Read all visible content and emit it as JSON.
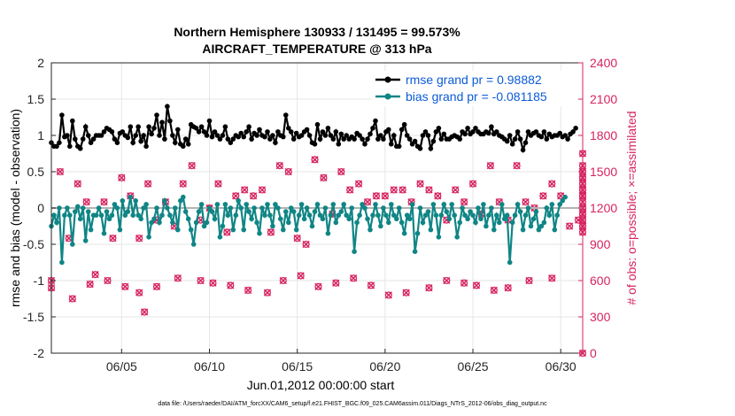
{
  "chart_data": {
    "type": "line",
    "title": "Northern Hemisphere 130933 / 131495 = 99.573%",
    "subtitle": "AIRCRAFT_TEMPERATURE @ 313 hPa",
    "xlabel": "Jun.01,2012 00:00:00 start",
    "ylabel_left": "rmse and bias (model - observation)",
    "ylabel_right": "# of obs: o=possible; ×=assimilated",
    "footer": "data file: /Users/raeder/DAI/ATM_forcXX/CAM6_setup/f.e21.FHIST_BGC.f09_025.CAM6assim.011/Diags_NTrS_2012-06/obs_diag_output.nc",
    "xlim": [
      1.0,
      31.25
    ],
    "ylim_left": [
      -2,
      2
    ],
    "ylim_right": [
      0,
      2400
    ],
    "xticks": [
      5,
      10,
      15,
      20,
      25,
      30
    ],
    "xtick_labels": [
      "06/05",
      "06/10",
      "06/15",
      "06/20",
      "06/25",
      "06/30"
    ],
    "yticks_left": [
      -2,
      -1.5,
      -1,
      -0.5,
      0,
      0.5,
      1,
      1.5,
      2
    ],
    "ytick_labels_left": [
      "-2",
      "-1.5",
      "-1",
      "-0.5",
      "0",
      "0.5",
      "1",
      "1.5",
      "2"
    ],
    "yticks_right": [
      0,
      300,
      600,
      900,
      1200,
      1500,
      1800,
      2100,
      2400
    ],
    "ytick_labels_right": [
      "0",
      "300",
      "600",
      "900",
      "1200",
      "1500",
      "1800",
      "2100",
      "2400"
    ],
    "legend_position": "top-right",
    "grid": true,
    "colors": {
      "rmse": "#000000",
      "bias": "#108585",
      "obs": "#d6245f",
      "zero_line": "#b3b3b3",
      "legend_text": "#0b5bd7"
    },
    "series": [
      {
        "name": "rmse grand pr = 0.98882",
        "values": [
          0.9,
          0.85,
          0.85,
          0.9,
          1.28,
          0.98,
          1.0,
          0.85,
          1.2,
          0.95,
          0.85,
          0.82,
          0.95,
          1.12,
          1.0,
          0.9,
          0.95,
          1.0,
          1.0,
          1.0,
          1.05,
          1.1,
          1.08,
          1.05,
          0.95,
          0.9,
          1.03,
          1.05,
          1.0,
          0.97,
          1.12,
          0.9,
          1.0,
          1.12,
          0.92,
          1.0,
          0.85,
          1.12,
          1.02,
          1.1,
          1.28,
          1.0,
          1.18,
          0.95,
          1.4,
          1.2,
          1.0,
          0.9,
          1.08,
          0.88,
          0.85,
          0.95,
          0.88,
          1.15,
          1.12,
          1.1,
          1.05,
          1.12,
          1.05,
          1.0,
          1.2,
          0.98,
          1.05,
          1.0,
          0.95,
          1.0,
          1.12,
          0.95,
          0.9,
          0.95,
          1.0,
          0.98,
          1.03,
          0.98,
          1.05,
          1.12,
          0.95,
          1.03,
          1.0,
          1.08,
          1.0,
          0.98,
          1.05,
          0.95,
          1.0,
          0.9,
          1.05,
          1.0,
          0.98,
          1.28,
          1.1,
          1.05,
          0.95,
          1.03,
          0.98,
          1.0,
          1.05,
          1.08,
          1.0,
          0.9,
          0.88,
          1.15,
          0.95,
          1.05,
          1.0,
          1.1,
          1.0,
          0.95,
          1.05,
          0.88,
          1.02,
          0.95,
          1.0,
          0.95,
          0.98,
          0.95,
          1.03,
          1.0,
          0.95,
          0.88,
          0.95,
          1.02,
          1.1,
          1.2,
          0.95,
          1.0,
          0.95,
          1.05,
          1.08,
          0.88,
          1.0,
          0.85,
          0.85,
          1.08,
          1.15,
          1.0,
          0.95,
          0.88,
          0.92,
          0.85,
          0.82,
          1.0,
          1.05,
          1.0,
          0.82,
          0.92,
          1.05,
          1.1,
          0.95,
          1.02,
          0.95,
          0.95,
          0.98,
          1.0,
          0.98,
          0.95,
          1.05,
          1.02,
          1.1,
          1.02,
          1.05,
          1.1,
          1.05,
          1.02,
          1.02,
          1.05,
          1.03,
          1.12,
          1.02,
          1.05,
          1.0,
          0.98,
          0.95,
          0.92,
          1.0,
          0.88,
          0.95,
          1.05,
          0.95,
          0.8,
          0.9,
          1.05,
          1.0,
          1.03,
          1.05,
          1.0,
          0.98,
          1.05,
          0.95,
          1.02,
          0.98,
          1.0,
          1.0,
          1.03,
          0.98,
          1.0,
          0.95,
          1.02,
          1.05,
          1.1
        ]
      },
      {
        "name": "bias grand pr = -0.081185",
        "values": [
          -0.25,
          -0.1,
          -0.2,
          0.0,
          -0.75,
          -0.1,
          0.0,
          -0.1,
          -0.5,
          -0.05,
          0.02,
          -0.15,
          0.0,
          -0.45,
          -0.05,
          -0.3,
          -0.1,
          -0.1,
          0.0,
          -0.1,
          -0.35,
          -0.05,
          -0.15,
          -0.1,
          0.05,
          0.0,
          -0.3,
          0.1,
          -0.1,
          -0.05,
          0.15,
          -0.1,
          0.1,
          -0.1,
          -0.15,
          0.0,
          0.05,
          -0.4,
          -0.2,
          -0.15,
          0.0,
          -0.2,
          -0.1,
          0.1,
          0.0,
          -0.1,
          -0.2,
          0.0,
          -0.3,
          0.1,
          0.15,
          -0.05,
          -0.15,
          -0.3,
          -0.5,
          -0.2,
          -0.05,
          0.05,
          -0.25,
          -0.2,
          0.0,
          -0.05,
          -0.15,
          0.05,
          -0.4,
          -0.25,
          0.05,
          -0.1,
          0.0,
          -0.3,
          -0.1,
          0.1,
          0.0,
          -0.3,
          0.05,
          -0.05,
          -0.15,
          0.0,
          -0.2,
          -0.35,
          0.0,
          -0.1,
          0.05,
          -0.1,
          -0.25,
          0.05,
          0.0,
          -0.15,
          -0.3,
          -0.05,
          -0.2,
          0.0,
          -0.05,
          -0.3,
          -0.1,
          0.05,
          -0.15,
          0.0,
          -0.1,
          -0.25,
          -0.05,
          0.05,
          -0.1,
          -0.15,
          0.0,
          -0.35,
          -0.1,
          0.05,
          -0.2,
          -0.1,
          -0.05,
          0.05,
          -0.1,
          -0.15,
          0.0,
          -0.6,
          -0.2,
          -0.1,
          0.05,
          0.0,
          -0.15,
          -0.3,
          -0.1,
          0.05,
          -0.1,
          -0.25,
          0.0,
          -0.1,
          -0.2,
          0.05,
          -0.1,
          -0.15,
          0.0,
          -0.2,
          -0.35,
          -0.1,
          -0.15,
          0.05,
          -0.6,
          -0.35,
          0.0,
          -0.2,
          -0.1,
          -0.05,
          -0.3,
          0.05,
          -0.1,
          -0.4,
          -0.1,
          0.05,
          -0.05,
          -0.15,
          0.05,
          -0.1,
          -0.4,
          -0.2,
          0.0,
          -0.1,
          -0.15,
          -0.05,
          -0.1,
          -0.2,
          0.0,
          -0.15,
          0.05,
          -0.25,
          -0.1,
          0.0,
          -0.3,
          -0.1,
          -0.2,
          0.05,
          -0.15,
          -0.1,
          -0.75,
          -0.2,
          -0.1,
          0.05,
          -0.05,
          -0.3,
          -0.1,
          0.0,
          -0.25,
          -0.15,
          -0.05,
          -0.3,
          -0.25,
          -0.2,
          0.0,
          -0.1,
          0.05,
          -0.3,
          -0.1,
          0.05,
          0.1,
          0.15
        ]
      }
    ],
    "obs_counts": [
      600,
      1350,
      1500,
      450,
      950,
      900,
      1400,
      600,
      1250,
      750,
      650,
      1300,
      1250,
      1450,
      950,
      350,
      1450,
      950,
      1300,
      1550,
      950,
      1050,
      1400,
      1450,
      1100,
      1350,
      1250,
      1300,
      1050,
      950,
      1400,
      1200,
      1550,
      1400,
      1100,
      1450,
      1200,
      1500,
      1400,
      1350,
      1000,
      1050,
      1300,
      1450,
      1350,
      1450,
      1300,
      1100,
      1350,
      1350,
      1000,
      1400,
      1550,
      1350,
      1500,
      1100,
      950,
      1150,
      900,
      1300,
      1600,
      1050,
      1450,
      1400,
      1150,
      1350,
      1500,
      1200,
      1350,
      1150,
      1400,
      1350,
      1250,
      1200,
      1300,
      1500,
      1300,
      1050,
      1350,
      1500,
      1350,
      1100,
      1250,
      1550,
      1400,
      1350,
      1350,
      1000,
      1300,
      1400,
      1100,
      1450,
      1350,
      1000,
      1250,
      1150,
      1400,
      1550,
      1150,
      1000,
      1550,
      1600,
      1250,
      1300,
      1100,
      1250,
      1550,
      1400,
      1250,
      1350,
      1200,
      1000,
      1300,
      1200,
      1400,
      1150,
      1300,
      1300,
      1050,
      1400,
      1100,
      1250,
      1350,
      1000,
      1200,
      1350,
      1500,
      1350,
      1150,
      1150,
      1050,
      1000,
      1650,
      1350,
      1200,
      1100,
      1450,
      1100,
      1400,
      1200,
      1500,
      1250,
      1350,
      1050,
      1200,
      1000,
      1300,
      1150,
      1450,
      1000,
      1200,
      1550,
      1050,
      1250,
      1400,
      1200,
      1200,
      1100,
      1450,
      1150,
      1300,
      1450,
      1200,
      1300,
      1100,
      1200,
      1350,
      1100,
      1200,
      1100,
      1000,
      1250,
      1550,
      1150,
      1200,
      1350,
      1150,
      1450,
      1100,
      1150,
      1200,
      1300,
      1300,
      1250,
      1150,
      1350,
      1050,
      1200,
      1250,
      1200,
      1300,
      1100,
      1200,
      1150,
      1300,
      1350,
      1200,
      1200,
      1050,
      1250,
      1100,
      1250,
      1350,
      1350,
      1200,
      0
    ],
    "obs_low_counts": [
      540,
      450,
      570,
      600,
      550,
      500,
      340,
      550,
      620,
      600,
      580,
      560,
      520,
      500,
      600,
      640,
      550,
      580,
      620,
      560,
      480,
      500,
      540,
      600,
      580,
      560,
      520,
      540,
      600,
      620
    ],
    "obs_low_days": [
      1.0,
      2.2,
      3.2,
      4.2,
      5.2,
      6.0,
      6.3,
      7.0,
      8.2,
      9.5,
      10.2,
      11.2,
      12.2,
      13.3,
      14.2,
      15.2,
      16.2,
      17.2,
      18.2,
      19.2,
      20.2,
      21.2,
      22.5,
      23.5,
      24.5,
      25.2,
      26.2,
      27.0,
      28.2,
      29.5
    ]
  }
}
